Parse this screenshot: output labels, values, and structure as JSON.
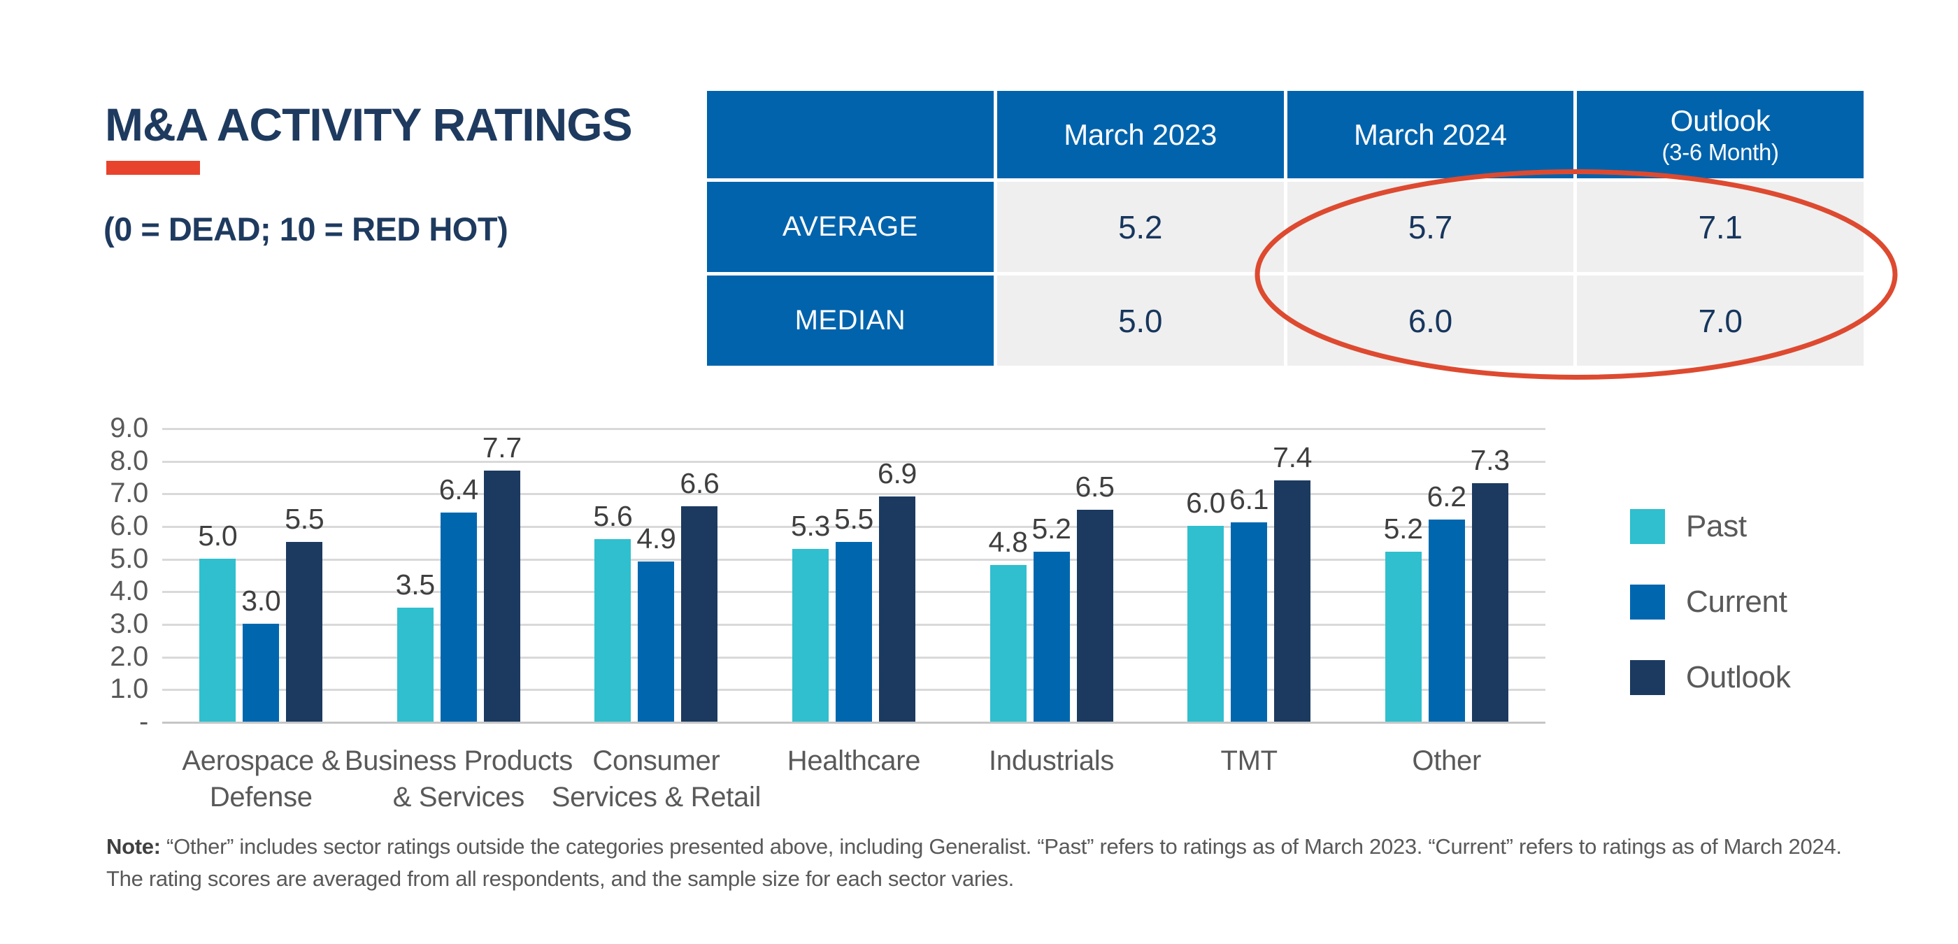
{
  "header": {
    "title": "M&A ACTIVITY RATINGS",
    "subtitle": "(0 = DEAD; 10 = RED HOT)"
  },
  "colors": {
    "navy_text": "#1e3a5f",
    "accent_red": "#dd4a30",
    "underline_red": "#e8432c",
    "table_header_blue": "#0063ac",
    "table_cell_gray": "#efefef",
    "table_value_navy": "#17365d",
    "gridline_gray": "#d9d9d9",
    "axis_text_gray": "#595959",
    "bar_label_gray": "#3f3f3f"
  },
  "chart_data": [
    {
      "type": "table",
      "columns": [
        "",
        "March 2023",
        "March 2024",
        "Outlook"
      ],
      "outlook_note": "(3-6 Month)",
      "rows": [
        {
          "label": "AVERAGE",
          "values": [
            "5.2",
            "5.7",
            "7.1"
          ]
        },
        {
          "label": "MEDIAN",
          "values": [
            "5.0",
            "6.0",
            "7.0"
          ]
        }
      ],
      "annotation": "red ellipse highlighting March 2024 and Outlook columns"
    },
    {
      "type": "bar",
      "title": "",
      "categories": [
        "Aerospace &\nDefense",
        "Business Products\n& Services",
        "Consumer\nServices & Retail",
        "Healthcare",
        "Industrials",
        "TMT",
        "Other"
      ],
      "series": [
        {
          "name": "Past",
          "color": "#2fbfce",
          "values": [
            5.0,
            3.5,
            5.6,
            5.3,
            4.8,
            6.0,
            5.2
          ]
        },
        {
          "name": "Current",
          "color": "#0067af",
          "values": [
            3.0,
            6.4,
            4.9,
            5.5,
            5.2,
            6.1,
            6.2
          ]
        },
        {
          "name": "Outlook",
          "color": "#1c3a60",
          "values": [
            5.5,
            7.7,
            6.6,
            6.9,
            6.5,
            7.4,
            7.3
          ]
        }
      ],
      "xlabel": "",
      "ylabel": "",
      "ylim": [
        0,
        9
      ],
      "ytick_step": 1,
      "ytick_format": "one_decimal",
      "zero_tick_label": "-",
      "grid": "horizontal",
      "legend_position": "right",
      "bar_labels": "shown above each bar, one decimal"
    }
  ],
  "note": {
    "label": "Note:",
    "text": "“Other” includes sector ratings outside the categories presented above, including Generalist. “Past” refers to ratings as of March 2023. “Current” refers to ratings as of March 2024. The rating scores are averaged from all respondents, and the sample size for each sector varies."
  }
}
